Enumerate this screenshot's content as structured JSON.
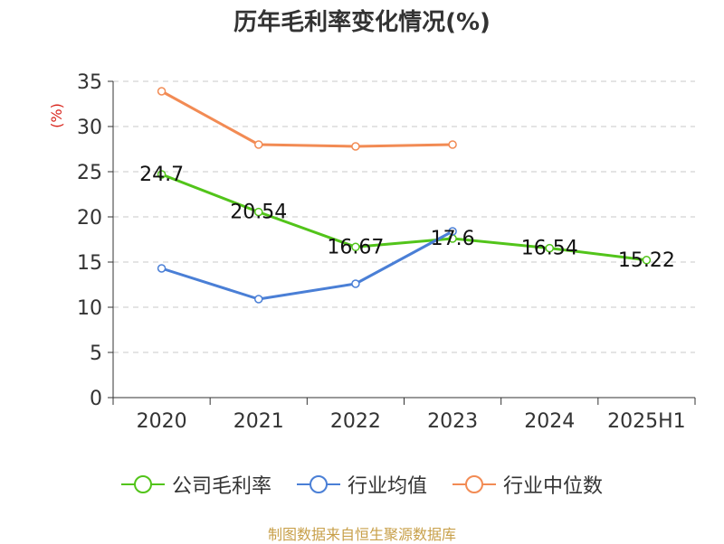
{
  "chart_data": {
    "type": "line",
    "title": "历年毛利率变化情况(%)",
    "ylabel": "(%)",
    "xlabel": "",
    "categories": [
      "2020",
      "2021",
      "2022",
      "2023",
      "2024",
      "2025H1"
    ],
    "ylim": [
      0,
      35
    ],
    "yticks": [
      0,
      5,
      10,
      15,
      20,
      25,
      30,
      35
    ],
    "grid": true,
    "legend_position": "bottom",
    "series": [
      {
        "name": "公司毛利率",
        "color": "#52c41a",
        "values": [
          24.7,
          20.54,
          16.67,
          17.6,
          16.54,
          15.22
        ],
        "labels": [
          "24.7",
          "20.54",
          "16.67",
          "17.6",
          "16.54",
          "15.22"
        ]
      },
      {
        "name": "行业均值",
        "color": "#4a7fd6",
        "values": [
          14.3,
          10.9,
          12.6,
          18.4,
          null,
          null
        ]
      },
      {
        "name": "行业中位数",
        "color": "#f28b54",
        "values": [
          33.9,
          28.0,
          27.8,
          28.0,
          null,
          null
        ]
      }
    ]
  },
  "source_note": "制图数据来自恒生聚源数据库"
}
